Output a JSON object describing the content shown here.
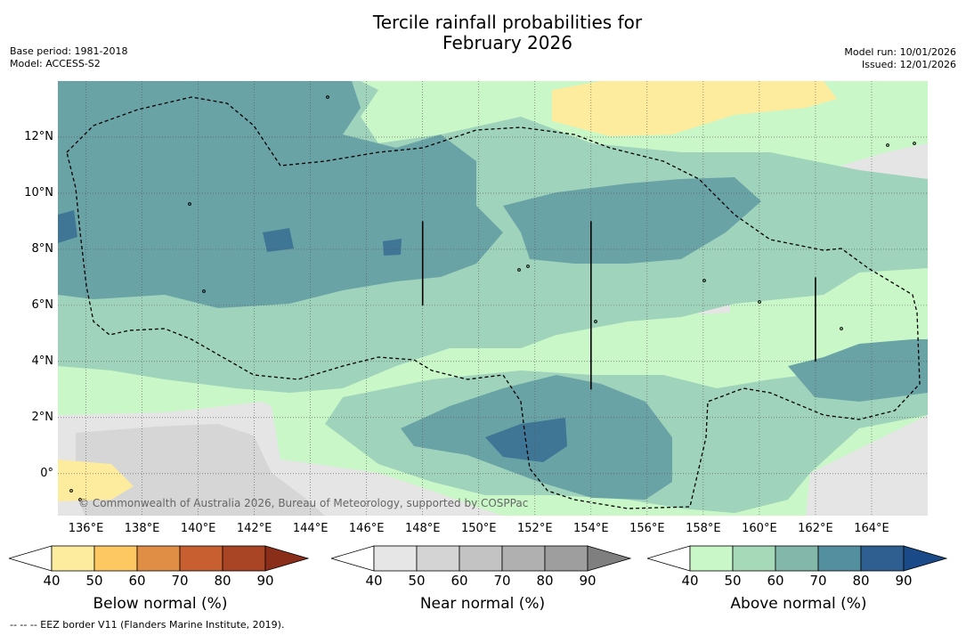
{
  "title_line1": "Tercile rainfall probabilities for",
  "title_line2": "February 2026",
  "base_period": "Base period: 1981-2018",
  "model": "Model: ACCESS-S2",
  "model_run": "Model run: 10/01/2026",
  "issued": "Issued: 12/01/2026",
  "copyright": "© Commonwealth of Australia 2026, Bureau of Meteorology, supported by COSPPac",
  "eez_note": "-- -- -- EEZ border V11 (Flanders Marine Institute, 2019).",
  "map": {
    "lon_range": [
      135,
      166
    ],
    "lat_range": [
      -1.5,
      14
    ],
    "lat_ticks": [
      "12°N",
      "10°N",
      "8°N",
      "6°N",
      "4°N",
      "2°N",
      "0°"
    ],
    "lon_ticks": [
      "136°E",
      "138°E",
      "140°E",
      "142°E",
      "144°E",
      "146°E",
      "148°E",
      "150°E",
      "152°E",
      "154°E",
      "156°E",
      "158°E",
      "160°E",
      "162°E",
      "164°E"
    ],
    "colors": {
      "above_40": "#c9f7c7",
      "above_50": "#9fd3bb",
      "above_60": "#6aa3a6",
      "above_70": "#3f7595",
      "near_40": "#e5e5e5",
      "near_50": "#d6d6d6",
      "below_40": "#fdec9d",
      "coast": "#000000",
      "eez": "#000000"
    }
  },
  "colorbars": [
    {
      "label": "Below normal (%)",
      "ticks": [
        "40",
        "50",
        "60",
        "70",
        "80",
        "90"
      ],
      "colors": [
        "#ffffff",
        "#fdec9d",
        "#fdc762",
        "#e08d45",
        "#c85f31",
        "#a94425",
        "#8a2e1a"
      ]
    },
    {
      "label": "Near normal (%)",
      "ticks": [
        "40",
        "50",
        "60",
        "70",
        "80",
        "90"
      ],
      "colors": [
        "#ffffff",
        "#e6e6e6",
        "#d4d4d4",
        "#c3c3c3",
        "#b0b0b0",
        "#9e9e9e",
        "#7f7f7f"
      ]
    },
    {
      "label": "Above normal (%)",
      "ticks": [
        "40",
        "50",
        "60",
        "70",
        "80",
        "90"
      ],
      "colors": [
        "#ffffff",
        "#c9f7c7",
        "#a5d9b8",
        "#82b7aa",
        "#548f9f",
        "#2f5f90",
        "#1a4b88"
      ]
    }
  ]
}
